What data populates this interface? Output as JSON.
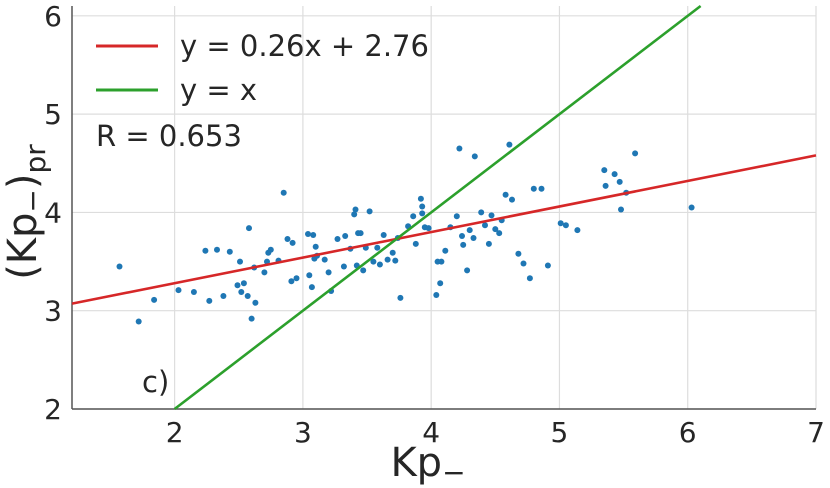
{
  "chart_data": {
    "type": "scatter",
    "title": "",
    "xlabel": "Kp",
    "xlabel_sub": "−",
    "ylabel": "(Kp",
    "ylabel_sub": "−",
    "ylabel_close": ")",
    "ylabel_subscript": "pr",
    "xlim": [
      1.2,
      7
    ],
    "ylim": [
      2,
      6.1
    ],
    "xticks": [
      2,
      3,
      4,
      5,
      6,
      7
    ],
    "yticks": [
      2,
      3,
      4,
      5,
      6
    ],
    "grid": true,
    "legend_position": "top-left",
    "colors": {
      "points": "#1f77b4",
      "fit_line": "#d62728",
      "identity_line": "#2ca02c",
      "grid": "#dddddd",
      "axis": "#555555"
    },
    "series": [
      {
        "name": "y = 0.26x + 2.76",
        "kind": "line",
        "slope": 0.26,
        "intercept": 2.76
      },
      {
        "name": "y = x",
        "kind": "line",
        "slope": 1,
        "intercept": 0
      },
      {
        "kind": "scatter",
        "points": [
          [
            1.57,
            3.45
          ],
          [
            1.72,
            2.89
          ],
          [
            1.84,
            3.11
          ],
          [
            2.03,
            3.21
          ],
          [
            2.15,
            3.19
          ],
          [
            2.24,
            3.61
          ],
          [
            2.27,
            3.1
          ],
          [
            2.33,
            3.62
          ],
          [
            2.38,
            3.15
          ],
          [
            2.43,
            3.6
          ],
          [
            2.49,
            3.26
          ],
          [
            2.51,
            3.5
          ],
          [
            2.52,
            3.19
          ],
          [
            2.54,
            3.28
          ],
          [
            2.57,
            3.15
          ],
          [
            2.58,
            3.84
          ],
          [
            2.6,
            2.92
          ],
          [
            2.62,
            3.44
          ],
          [
            2.63,
            3.08
          ],
          [
            2.7,
            3.39
          ],
          [
            2.72,
            3.5
          ],
          [
            2.73,
            3.59
          ],
          [
            2.75,
            3.62
          ],
          [
            2.81,
            3.51
          ],
          [
            2.85,
            4.2
          ],
          [
            2.88,
            3.73
          ],
          [
            2.91,
            3.3
          ],
          [
            2.92,
            3.69
          ],
          [
            2.95,
            3.33
          ],
          [
            3.04,
            3.78
          ],
          [
            3.05,
            3.36
          ],
          [
            3.07,
            3.24
          ],
          [
            3.08,
            3.77
          ],
          [
            3.09,
            3.53
          ],
          [
            3.1,
            3.65
          ],
          [
            3.11,
            3.56
          ],
          [
            3.17,
            3.52
          ],
          [
            3.2,
            3.39
          ],
          [
            3.22,
            3.2
          ],
          [
            3.27,
            3.73
          ],
          [
            3.32,
            3.45
          ],
          [
            3.33,
            3.76
          ],
          [
            3.37,
            3.63
          ],
          [
            3.4,
            3.98
          ],
          [
            3.41,
            4.03
          ],
          [
            3.42,
            3.46
          ],
          [
            3.43,
            3.79
          ],
          [
            3.45,
            3.79
          ],
          [
            3.47,
            3.41
          ],
          [
            3.49,
            3.64
          ],
          [
            3.52,
            4.01
          ],
          [
            3.55,
            3.5
          ],
          [
            3.58,
            3.64
          ],
          [
            3.6,
            3.47
          ],
          [
            3.63,
            3.77
          ],
          [
            3.66,
            3.52
          ],
          [
            3.7,
            3.59
          ],
          [
            3.72,
            3.51
          ],
          [
            3.74,
            3.74
          ],
          [
            3.76,
            3.13
          ],
          [
            3.82,
            3.86
          ],
          [
            3.86,
            3.96
          ],
          [
            3.88,
            3.68
          ],
          [
            3.92,
            4.14
          ],
          [
            3.93,
            3.99
          ],
          [
            3.93,
            4.06
          ],
          [
            3.95,
            3.85
          ],
          [
            3.98,
            3.84
          ],
          [
            4.04,
            3.16
          ],
          [
            4.05,
            3.5
          ],
          [
            4.07,
            3.28
          ],
          [
            4.08,
            3.5
          ],
          [
            4.11,
            3.61
          ],
          [
            4.15,
            3.85
          ],
          [
            4.2,
            3.96
          ],
          [
            4.22,
            4.65
          ],
          [
            4.24,
            3.76
          ],
          [
            4.25,
            3.67
          ],
          [
            4.28,
            3.41
          ],
          [
            4.3,
            3.82
          ],
          [
            4.33,
            3.74
          ],
          [
            4.34,
            4.57
          ],
          [
            4.39,
            4.0
          ],
          [
            4.42,
            3.87
          ],
          [
            4.45,
            3.68
          ],
          [
            4.47,
            3.97
          ],
          [
            4.5,
            3.83
          ],
          [
            4.53,
            3.79
          ],
          [
            4.55,
            3.92
          ],
          [
            4.58,
            4.18
          ],
          [
            4.61,
            4.69
          ],
          [
            4.63,
            4.13
          ],
          [
            4.68,
            3.58
          ],
          [
            4.72,
            3.48
          ],
          [
            4.77,
            3.33
          ],
          [
            4.8,
            4.24
          ],
          [
            4.86,
            4.24
          ],
          [
            4.91,
            3.46
          ],
          [
            5.01,
            3.89
          ],
          [
            5.05,
            3.87
          ],
          [
            5.14,
            3.82
          ],
          [
            5.35,
            4.43
          ],
          [
            5.36,
            4.27
          ],
          [
            5.43,
            4.39
          ],
          [
            5.47,
            4.31
          ],
          [
            5.48,
            4.03
          ],
          [
            5.52,
            4.2
          ],
          [
            5.59,
            4.6
          ],
          [
            6.03,
            4.05
          ]
        ]
      }
    ],
    "annotations": {
      "r_value": "R = 0.653",
      "panel": "c)"
    }
  }
}
